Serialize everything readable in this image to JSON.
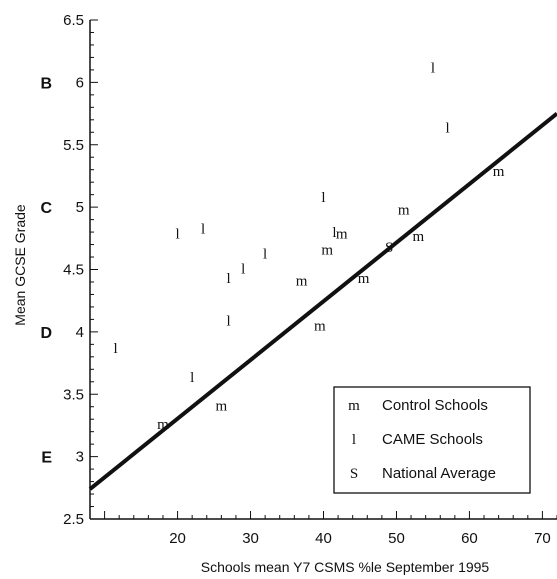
{
  "chart_data": {
    "type": "scatter",
    "xlabel": "Schools mean Y7 CSMS %le September 1995",
    "ylabel": "Mean GCSE Grade",
    "xlim": [
      8,
      72
    ],
    "ylim": [
      2.5,
      6.5
    ],
    "x_ticks": [
      20,
      30,
      40,
      50,
      60,
      70
    ],
    "y_ticks": [
      2.5,
      3,
      3.5,
      4,
      4.5,
      5,
      5.5,
      6,
      6.5
    ],
    "grade_labels": [
      {
        "label": "B",
        "y": 6
      },
      {
        "label": "C",
        "y": 5
      },
      {
        "label": "D",
        "y": 4
      },
      {
        "label": "E",
        "y": 3
      }
    ],
    "series": [
      {
        "name": "Control Schools",
        "marker": "m",
        "points": [
          {
            "x": 18,
            "y": 3.26
          },
          {
            "x": 26,
            "y": 3.41
          },
          {
            "x": 37,
            "y": 4.41
          },
          {
            "x": 39.5,
            "y": 4.05
          },
          {
            "x": 40.5,
            "y": 4.66
          },
          {
            "x": 42.5,
            "y": 4.79
          },
          {
            "x": 45.5,
            "y": 4.43
          },
          {
            "x": 51,
            "y": 4.98
          },
          {
            "x": 53,
            "y": 4.77
          },
          {
            "x": 64,
            "y": 5.29
          }
        ]
      },
      {
        "name": "CAME Schools",
        "marker": "l",
        "points": [
          {
            "x": 11.5,
            "y": 3.87
          },
          {
            "x": 20,
            "y": 4.79
          },
          {
            "x": 22,
            "y": 3.64
          },
          {
            "x": 23.5,
            "y": 4.83
          },
          {
            "x": 27,
            "y": 4.43
          },
          {
            "x": 27,
            "y": 4.09
          },
          {
            "x": 29,
            "y": 4.51
          },
          {
            "x": 32,
            "y": 4.63
          },
          {
            "x": 40,
            "y": 5.08
          },
          {
            "x": 41.5,
            "y": 4.8
          },
          {
            "x": 55,
            "y": 6.12
          },
          {
            "x": 57,
            "y": 5.64
          }
        ]
      },
      {
        "name": "National Average",
        "marker": "S",
        "points": [
          {
            "x": 49,
            "y": 4.68
          }
        ]
      }
    ],
    "regression_line": {
      "x": [
        8,
        72
      ],
      "y": [
        2.74,
        5.75
      ]
    },
    "legend": {
      "placement": "bottom-right",
      "entries": [
        {
          "symbol": "m",
          "label": "Control Schools"
        },
        {
          "symbol": "l",
          "label": "CAME Schools"
        },
        {
          "symbol": "S",
          "label": "National Average"
        }
      ]
    },
    "grid": false
  }
}
